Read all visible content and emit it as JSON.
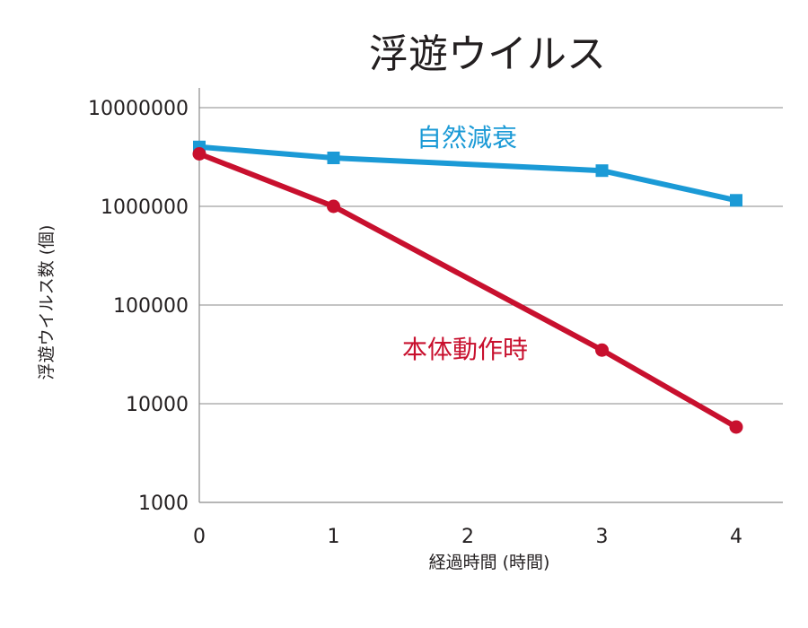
{
  "chart_data": {
    "type": "line",
    "title": "浮遊ウイルス",
    "xlabel": "経過時間 (時間)",
    "ylabel": "浮遊ウイルス数 (個)",
    "x": [
      0,
      1,
      2,
      3,
      4
    ],
    "x_tick_labels": [
      "0",
      "1",
      "2",
      "3",
      "4"
    ],
    "y_scale": "log",
    "ylim": [
      1000,
      10000000
    ],
    "y_tick_values": [
      1000,
      10000,
      100000,
      1000000,
      10000000
    ],
    "y_tick_labels": [
      "1000",
      "10000",
      "100000",
      "1000000",
      "10000000"
    ],
    "grid": true,
    "series": [
      {
        "name": "自然減衰",
        "color": "#1b9ad6",
        "marker": "square",
        "x": [
          0,
          1,
          3,
          4
        ],
        "values": [
          4000000,
          3100000,
          2300000,
          1150000
        ]
      },
      {
        "name": "本体動作時",
        "color": "#c8102e",
        "marker": "circle",
        "x": [
          0,
          1,
          3,
          4
        ],
        "values": [
          3400000,
          1000000,
          35000,
          5800
        ]
      }
    ]
  }
}
